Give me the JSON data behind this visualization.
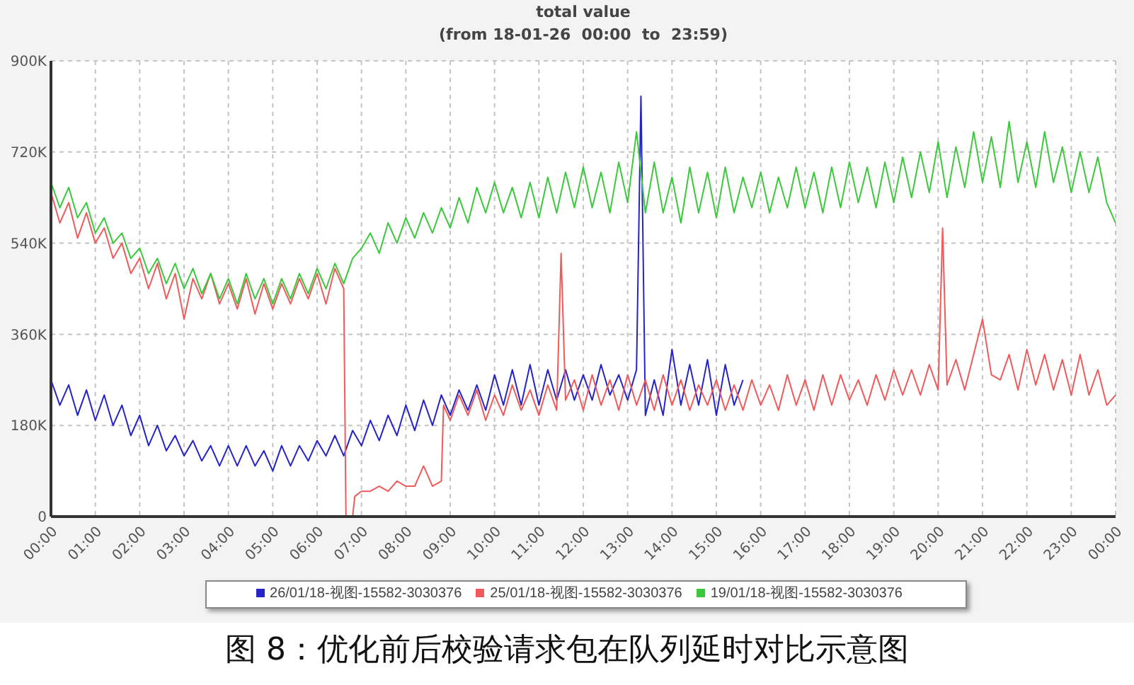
{
  "chart_data": {
    "type": "line",
    "title": "total value",
    "subtitle": "(from 18-01-26  00:00  to  23:59)",
    "annotations": [
      "图 8：优化前后校验请求包在队列延时对比示意图"
    ],
    "xlim": [
      0,
      24
    ],
    "xticks": [
      {
        "value": 0,
        "label": "00:00"
      },
      {
        "value": 1,
        "label": "01:00"
      },
      {
        "value": 2,
        "label": "02:00"
      },
      {
        "value": 3,
        "label": "03:00"
      },
      {
        "value": 4,
        "label": "04:00"
      },
      {
        "value": 5,
        "label": "05:00"
      },
      {
        "value": 6,
        "label": "06:00"
      },
      {
        "value": 7,
        "label": "07:00"
      },
      {
        "value": 8,
        "label": "08:00"
      },
      {
        "value": 9,
        "label": "09:00"
      },
      {
        "value": 10,
        "label": "10:00"
      },
      {
        "value": 11,
        "label": "11:00"
      },
      {
        "value": 12,
        "label": "12:00"
      },
      {
        "value": 13,
        "label": "13:00"
      },
      {
        "value": 14,
        "label": "14:00"
      },
      {
        "value": 15,
        "label": "15:00"
      },
      {
        "value": 16,
        "label": "16:00"
      },
      {
        "value": 17,
        "label": "17:00"
      },
      {
        "value": 18,
        "label": "18:00"
      },
      {
        "value": 19,
        "label": "19:00"
      },
      {
        "value": 20,
        "label": "20:00"
      },
      {
        "value": 21,
        "label": "21:00"
      },
      {
        "value": 22,
        "label": "22:00"
      },
      {
        "value": 23,
        "label": "23:00"
      },
      {
        "value": 24,
        "label": "00:00"
      }
    ],
    "ylim": [
      0,
      900000
    ],
    "yticks": [
      0,
      {
        "value": 180000,
        "label": "180K"
      },
      {
        "value": 360000,
        "label": "360K"
      },
      {
        "value": 540000,
        "label": "540K"
      },
      {
        "value": 720000,
        "label": "720K"
      },
      {
        "value": 900000,
        "label": "900K"
      }
    ],
    "grid": true,
    "legend": "bottom",
    "line_style": "solid",
    "series": [
      {
        "name": "26/01/18-视图-15582-3030376",
        "color": "#2424c8",
        "x": [
          0,
          0.2,
          0.4,
          0.6,
          0.8,
          1,
          1.2,
          1.4,
          1.6,
          1.8,
          2,
          2.2,
          2.4,
          2.6,
          2.8,
          3,
          3.2,
          3.4,
          3.6,
          3.8,
          4,
          4.2,
          4.4,
          4.6,
          4.8,
          5,
          5.2,
          5.4,
          5.6,
          5.8,
          6,
          6.2,
          6.4,
          6.6,
          6.8,
          7,
          7.2,
          7.4,
          7.6,
          7.8,
          8,
          8.2,
          8.4,
          8.6,
          8.8,
          9,
          9.2,
          9.4,
          9.6,
          9.8,
          10,
          10.2,
          10.4,
          10.6,
          10.8,
          11,
          11.2,
          11.4,
          11.6,
          11.8,
          12,
          12.2,
          12.4,
          12.6,
          12.8,
          13,
          13.2,
          13.3,
          13.4,
          13.6,
          13.8,
          14,
          14.2,
          14.4,
          14.6,
          14.8,
          15,
          15.2,
          15.4,
          15.6
        ],
        "values": [
          270000,
          220000,
          260000,
          200000,
          250000,
          190000,
          240000,
          180000,
          220000,
          160000,
          200000,
          140000,
          180000,
          130000,
          160000,
          120000,
          150000,
          110000,
          140000,
          100000,
          140000,
          100000,
          140000,
          100000,
          130000,
          90000,
          140000,
          100000,
          140000,
          110000,
          150000,
          120000,
          160000,
          120000,
          170000,
          140000,
          190000,
          150000,
          200000,
          160000,
          220000,
          170000,
          230000,
          180000,
          240000,
          200000,
          250000,
          210000,
          260000,
          210000,
          280000,
          220000,
          290000,
          220000,
          300000,
          220000,
          290000,
          230000,
          290000,
          230000,
          280000,
          230000,
          300000,
          240000,
          280000,
          230000,
          290000,
          830000,
          200000,
          270000,
          200000,
          330000,
          220000,
          300000,
          220000,
          310000,
          200000,
          300000,
          220000,
          270000
        ]
      },
      {
        "name": "25/01/18-视图-15582-3030376",
        "color": "#f05a5a",
        "x": [
          0,
          0.2,
          0.4,
          0.6,
          0.8,
          1,
          1.2,
          1.4,
          1.6,
          1.8,
          2,
          2.2,
          2.4,
          2.6,
          2.8,
          3,
          3.2,
          3.4,
          3.6,
          3.8,
          4,
          4.2,
          4.4,
          4.6,
          4.8,
          5,
          5.2,
          5.4,
          5.6,
          5.8,
          6,
          6.2,
          6.4,
          6.6,
          6.65,
          6.8,
          6.85,
          7,
          7.2,
          7.4,
          7.6,
          7.8,
          8,
          8.2,
          8.4,
          8.6,
          8.8,
          8.85,
          9,
          9.2,
          9.4,
          9.6,
          9.8,
          10,
          10.2,
          10.4,
          10.6,
          10.8,
          11,
          11.2,
          11.4,
          11.5,
          11.6,
          11.8,
          12,
          12.2,
          12.4,
          12.6,
          12.8,
          13,
          13.2,
          13.4,
          13.6,
          13.8,
          14,
          14.2,
          14.4,
          14.6,
          14.8,
          15,
          15.2,
          15.4,
          15.6,
          15.8,
          16,
          16.2,
          16.4,
          16.6,
          16.8,
          17,
          17.2,
          17.4,
          17.6,
          17.8,
          18,
          18.2,
          18.4,
          18.6,
          18.8,
          19,
          19.2,
          19.4,
          19.6,
          19.8,
          20,
          20.1,
          20.2,
          20.4,
          20.6,
          20.8,
          21,
          21.2,
          21.4,
          21.6,
          21.8,
          22,
          22.2,
          22.4,
          22.6,
          22.8,
          23,
          23.2,
          23.4,
          23.6,
          23.8,
          24
        ],
        "values": [
          640000,
          580000,
          620000,
          550000,
          600000,
          540000,
          570000,
          510000,
          540000,
          480000,
          510000,
          450000,
          500000,
          430000,
          480000,
          390000,
          470000,
          430000,
          480000,
          420000,
          460000,
          410000,
          470000,
          400000,
          460000,
          410000,
          460000,
          420000,
          470000,
          430000,
          480000,
          420000,
          490000,
          450000,
          0,
          0,
          40000,
          50000,
          50000,
          60000,
          50000,
          70000,
          60000,
          60000,
          100000,
          60000,
          70000,
          220000,
          190000,
          240000,
          200000,
          250000,
          190000,
          240000,
          200000,
          260000,
          210000,
          250000,
          200000,
          260000,
          210000,
          520000,
          230000,
          270000,
          210000,
          280000,
          220000,
          270000,
          210000,
          280000,
          220000,
          270000,
          210000,
          280000,
          220000,
          270000,
          210000,
          260000,
          220000,
          270000,
          210000,
          260000,
          210000,
          270000,
          220000,
          260000,
          210000,
          280000,
          220000,
          270000,
          210000,
          280000,
          220000,
          280000,
          230000,
          270000,
          220000,
          280000,
          230000,
          290000,
          240000,
          290000,
          240000,
          300000,
          250000,
          570000,
          260000,
          310000,
          250000,
          320000,
          390000,
          280000,
          270000,
          320000,
          250000,
          330000,
          260000,
          320000,
          250000,
          310000,
          240000,
          320000,
          240000,
          290000,
          220000,
          240000
        ]
      },
      {
        "name": "19/01/18-视图-15582-3030376",
        "color": "#3cc83c",
        "x": [
          0,
          0.2,
          0.4,
          0.6,
          0.8,
          1,
          1.2,
          1.4,
          1.6,
          1.8,
          2,
          2.2,
          2.4,
          2.6,
          2.8,
          3,
          3.2,
          3.4,
          3.6,
          3.8,
          4,
          4.2,
          4.4,
          4.6,
          4.8,
          5,
          5.2,
          5.4,
          5.6,
          5.8,
          6,
          6.2,
          6.4,
          6.6,
          6.8,
          7,
          7.2,
          7.4,
          7.6,
          7.8,
          8,
          8.2,
          8.4,
          8.6,
          8.8,
          9,
          9.2,
          9.4,
          9.6,
          9.8,
          10,
          10.2,
          10.4,
          10.6,
          10.8,
          11,
          11.2,
          11.4,
          11.6,
          11.8,
          12,
          12.2,
          12.4,
          12.6,
          12.8,
          13,
          13.2,
          13.4,
          13.6,
          13.8,
          14,
          14.2,
          14.4,
          14.6,
          14.8,
          15,
          15.2,
          15.4,
          15.6,
          15.8,
          16,
          16.2,
          16.4,
          16.6,
          16.8,
          17,
          17.2,
          17.4,
          17.6,
          17.8,
          18,
          18.2,
          18.4,
          18.6,
          18.8,
          19,
          19.2,
          19.4,
          19.6,
          19.8,
          20,
          20.2,
          20.4,
          20.6,
          20.8,
          21,
          21.2,
          21.4,
          21.6,
          21.8,
          22,
          22.2,
          22.4,
          22.6,
          22.8,
          23,
          23.2,
          23.4,
          23.6,
          23.8,
          24
        ],
        "values": [
          660000,
          610000,
          650000,
          590000,
          620000,
          560000,
          590000,
          540000,
          560000,
          510000,
          530000,
          480000,
          510000,
          460000,
          500000,
          450000,
          490000,
          440000,
          480000,
          430000,
          470000,
          420000,
          480000,
          430000,
          470000,
          420000,
          470000,
          430000,
          480000,
          440000,
          490000,
          450000,
          500000,
          460000,
          510000,
          530000,
          560000,
          520000,
          580000,
          540000,
          590000,
          550000,
          600000,
          560000,
          610000,
          570000,
          630000,
          580000,
          650000,
          600000,
          660000,
          600000,
          650000,
          590000,
          660000,
          590000,
          670000,
          600000,
          680000,
          610000,
          690000,
          610000,
          680000,
          600000,
          700000,
          620000,
          760000,
          600000,
          700000,
          600000,
          670000,
          580000,
          690000,
          600000,
          680000,
          590000,
          690000,
          600000,
          670000,
          610000,
          680000,
          600000,
          670000,
          610000,
          690000,
          610000,
          680000,
          600000,
          690000,
          610000,
          700000,
          620000,
          690000,
          610000,
          700000,
          620000,
          710000,
          630000,
          720000,
          640000,
          740000,
          630000,
          730000,
          650000,
          760000,
          660000,
          750000,
          650000,
          780000,
          660000,
          740000,
          650000,
          760000,
          660000,
          730000,
          640000,
          720000,
          640000,
          710000,
          620000,
          580000
        ]
      }
    ]
  }
}
